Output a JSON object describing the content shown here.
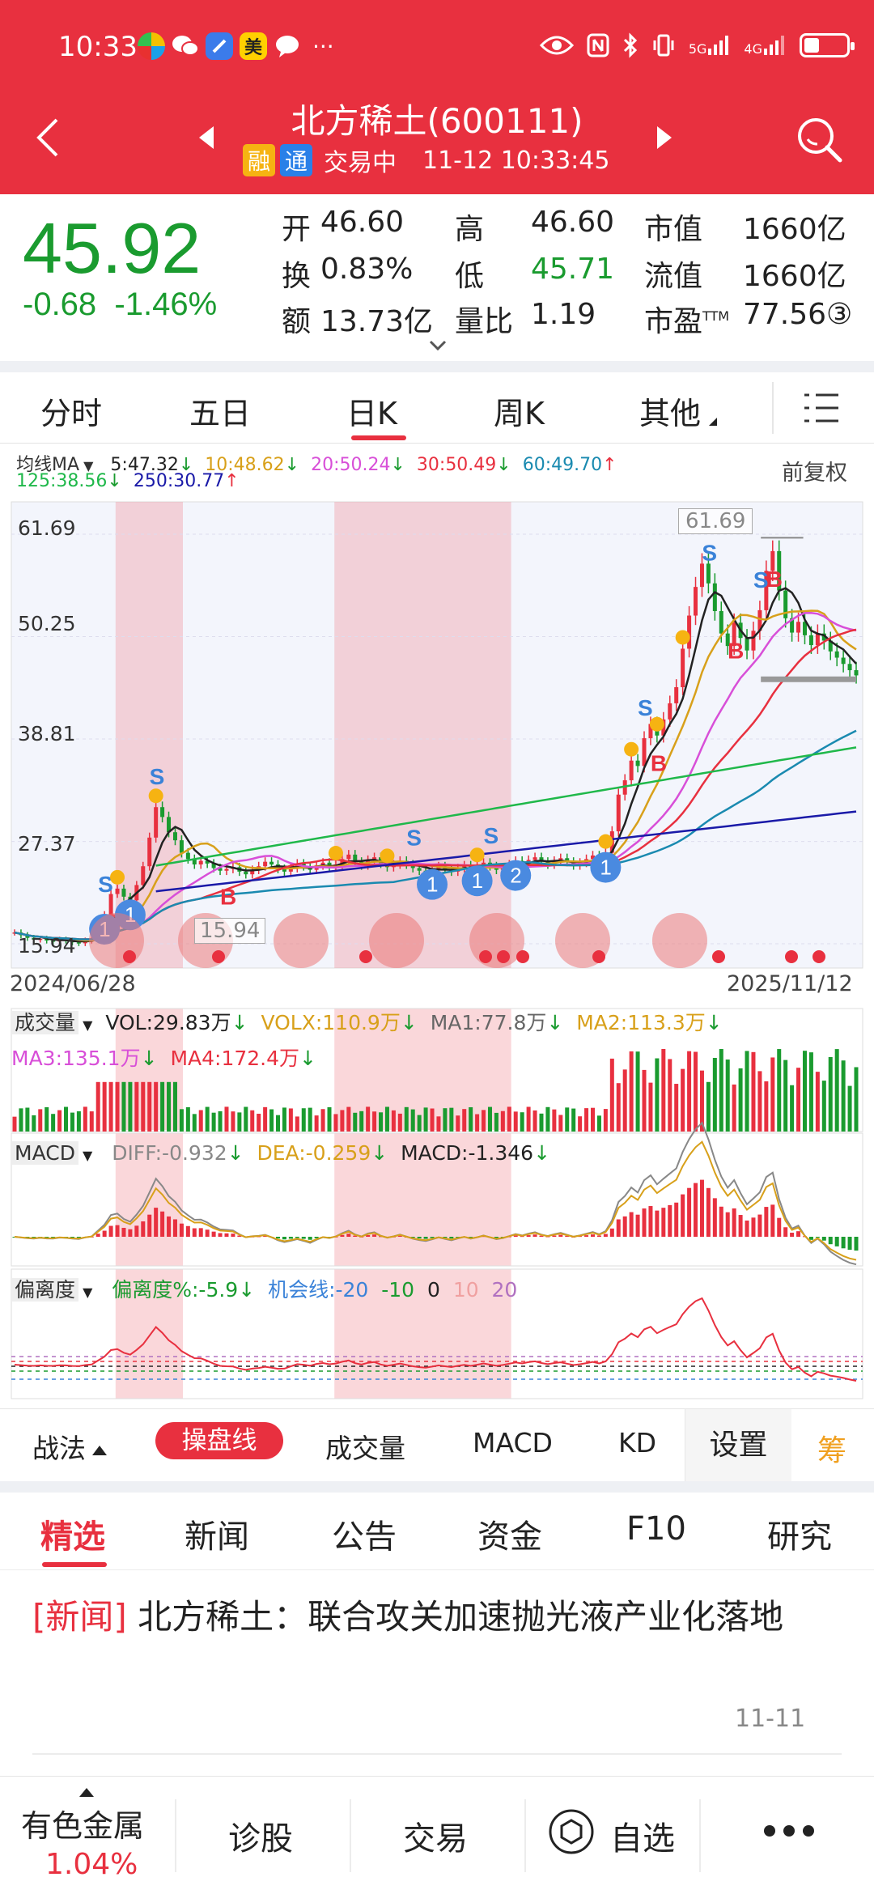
{
  "status": {
    "time": "10:33",
    "app_icons": [
      "vpn-app-icon",
      "wechat-icon",
      "browser-app-icon",
      "meituan-icon",
      "chat-bubble-icon"
    ],
    "meituan_label": "美",
    "more": "···",
    "net_5g": "5G",
    "net_4g": "4G",
    "battery_level": 0.35
  },
  "header": {
    "title": "北方稀土(600111)",
    "tag_rong": "融",
    "tag_tong": "通",
    "trade_status": "交易中",
    "datetime": "11-12 10:33:45"
  },
  "quote": {
    "price": "45.92",
    "change": "-0.68",
    "change_pct": "-1.46%",
    "open_label": "开",
    "open": "46.60",
    "high_label": "高",
    "high": "46.60",
    "mcap_label": "市值",
    "mcap": "1660亿",
    "turnover_label": "换",
    "turnover": "0.83%",
    "low_label": "低",
    "low": "45.71",
    "float_label": "流值",
    "float_cap": "1660亿",
    "amount_label": "额",
    "amount": "13.73亿",
    "volratio_label": "量比",
    "volratio": "1.19",
    "pe_label": "市盈",
    "pe_sup": "TTM",
    "pe": "77.56③"
  },
  "tabs": [
    "分时",
    "五日",
    "日K",
    "周K",
    "其他"
  ],
  "active_tab": "日K",
  "ma": {
    "title": "均线MA",
    "ma5": "5:47.32",
    "ma10": "10:48.62",
    "ma20": "20:50.24",
    "ma30": "30:50.49",
    "ma60": "60:49.70",
    "ma125": "125:38.56",
    "ma250": "250:30.77",
    "adjust": "前复权"
  },
  "chart_data": [
    {
      "type": "candlestick",
      "title": "日K",
      "y_ticks": [
        "61.69",
        "50.25",
        "38.81",
        "27.37",
        "15.94"
      ],
      "ylim": [
        15.94,
        61.69
      ],
      "x_range": [
        "2024/06/28",
        "2025/11/12"
      ],
      "max_label": "61.69",
      "min_label": "15.94",
      "close_series": [
        17.2,
        16.9,
        16.6,
        16.4,
        16.5,
        16.3,
        16.2,
        16.4,
        16.3,
        16.1,
        16.0,
        16.3,
        16.5,
        17.8,
        19.2,
        21.5,
        22.1,
        21.2,
        20.8,
        22.5,
        24.6,
        27.8,
        31.2,
        30.1,
        28.4,
        27.5,
        26.1,
        25.4,
        24.8,
        25.2,
        24.9,
        24.4,
        24.1,
        24.3,
        24.5,
        24.0,
        23.7,
        24.2,
        24.6,
        25.1,
        24.8,
        24.3,
        24.0,
        24.4,
        24.9,
        24.6,
        24.2,
        24.7,
        25.0,
        24.6,
        24.8,
        25.4,
        25.9,
        25.1,
        24.7,
        25.3,
        25.6,
        24.9,
        24.5,
        24.8,
        25.2,
        24.8,
        24.4,
        24.1,
        23.9,
        24.2,
        24.6,
        24.3,
        24.0,
        24.4,
        24.7,
        24.3,
        24.6,
        25.0,
        24.6,
        24.2,
        24.4,
        24.8,
        25.2,
        24.9,
        25.3,
        25.6,
        25.1,
        24.8,
        25.2,
        25.5,
        25.1,
        24.7,
        25.0,
        25.4,
        25.8,
        25.4,
        26.1,
        28.5,
        32.6,
        34.2,
        36.4,
        35.8,
        38.9,
        40.5,
        39.2,
        41.0,
        42.8,
        44.6,
        48.9,
        52.6,
        55.8,
        58.4,
        56.2,
        53.1,
        50.6,
        49.2,
        51.8,
        50.1,
        48.7,
        50.9,
        53.2,
        57.6,
        59.8,
        55.4,
        52.3,
        50.7,
        51.9,
        50.4,
        49.3,
        50.6,
        49.8,
        48.6,
        47.9,
        47.2,
        46.5,
        45.92
      ],
      "markers": [
        {
          "label": "S",
          "kind": "sell"
        },
        {
          "label": "B",
          "kind": "buy"
        },
        {
          "label": "1",
          "kind": "signal"
        }
      ]
    },
    {
      "type": "bar",
      "title": "成交量",
      "series": [
        {
          "name": "VOL",
          "value": "VOL:29.83万"
        },
        {
          "name": "VOLX",
          "value": "VOLX:110.9万"
        },
        {
          "name": "MA1",
          "value": "MA1:77.8万"
        },
        {
          "name": "MA2",
          "value": "MA2:113.3万"
        },
        {
          "name": "MA3",
          "value": "MA3:135.1万"
        },
        {
          "name": "MA4",
          "value": "MA4:172.4万"
        }
      ]
    },
    {
      "type": "line",
      "title": "MACD",
      "series": [
        {
          "name": "DIFF",
          "value": "DIFF:-0.932"
        },
        {
          "name": "DEA",
          "value": "DEA:-0.259"
        },
        {
          "name": "MACD",
          "value": "MACD:-1.346"
        }
      ]
    },
    {
      "type": "line",
      "title": "偏离度",
      "series": [
        {
          "name": "偏离度%",
          "value": "偏离度%:-5.9"
        },
        {
          "name": "机会线",
          "value": "机会线:-20"
        }
      ],
      "levels": [
        "-10",
        "0",
        "10",
        "20"
      ]
    }
  ],
  "toolbar": {
    "zhanfa": "战法",
    "active": "操盘线",
    "vol": "成交量",
    "macd": "MACD",
    "kd": "KD",
    "settings": "设置",
    "chou": "筹"
  },
  "news_tabs": [
    "精选",
    "新闻",
    "公告",
    "资金",
    "F10",
    "研究"
  ],
  "news": {
    "tag": "[新闻]",
    "title": "北方稀土：联合攻关加速抛光液产业化落地",
    "date": "11-11"
  },
  "bottom_nav": {
    "sector": "有色金属",
    "sector_change": "1.04%",
    "diagnose": "诊股",
    "trade": "交易",
    "watchlist": "自选"
  },
  "colors": {
    "brand_red": "#e8303f",
    "down_green": "#1a9b2f",
    "ma5": "#222222",
    "ma10": "#d8a01a",
    "ma20": "#d84fd8",
    "ma30": "#e8303f",
    "ma60": "#1a8ab0",
    "ma125": "#1fb84a",
    "ma250": "#1a1aa8"
  }
}
